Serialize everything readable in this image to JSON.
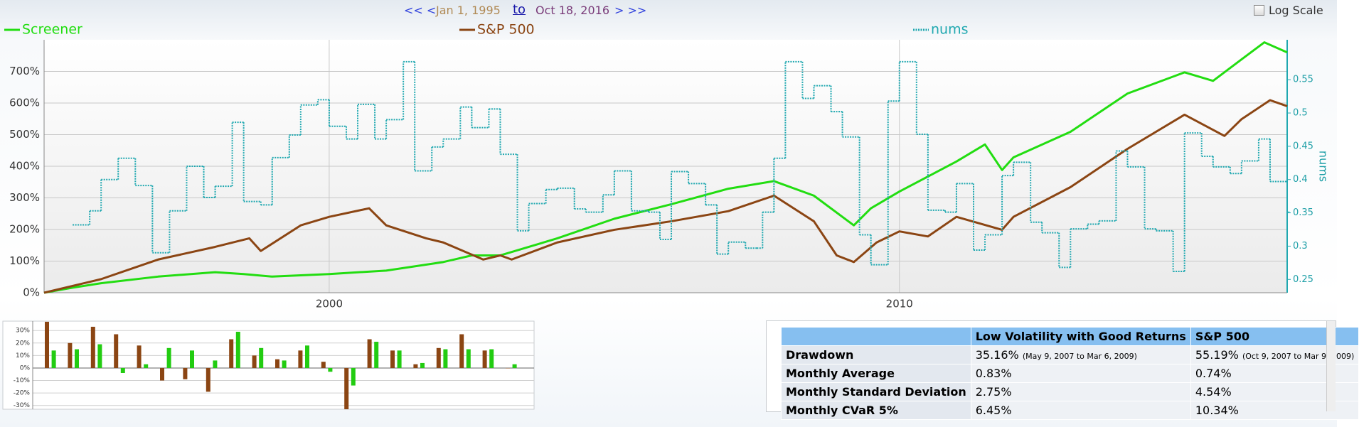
{
  "header": {
    "prev": "<< <",
    "start": "Jan 1, 1995",
    "to": "to",
    "end": "Oct 18, 2016",
    "next": "> >>",
    "log_scale_label": "Log Scale"
  },
  "chart_data": [
    {
      "type": "line",
      "log_scale": false,
      "grid": true,
      "legend": "top",
      "xlim": [
        1995,
        2016.8
      ],
      "xticks": [
        2000,
        2010
      ],
      "ylim": [
        0,
        800
      ],
      "yticks": [
        {
          "value": 0,
          "label": "0%"
        },
        {
          "value": 100,
          "label": "100%"
        },
        {
          "value": 200,
          "label": "200%"
        },
        {
          "value": 300,
          "label": "300%"
        },
        {
          "value": 400,
          "label": "400%"
        },
        {
          "value": 500,
          "label": "500%"
        },
        {
          "value": 600,
          "label": "600%"
        },
        {
          "value": 700,
          "label": "700%"
        }
      ],
      "y2lim": [
        0.23,
        0.61
      ],
      "y2ticks": [
        0.25,
        0.3,
        0.35,
        0.4,
        0.45,
        0.5,
        0.55
      ],
      "y2label": "nums",
      "series": [
        {
          "name": "Screener",
          "color": "#22dd11",
          "x": [
            1995,
            1995.5,
            1996,
            1997,
            1998,
            1998.5,
            1999,
            2000,
            2001,
            2002,
            2002.5,
            2003,
            2004,
            2005,
            2006,
            2007,
            2007.8,
            2008.5,
            2009.2,
            2009.5,
            2010,
            2011,
            2011.5,
            2011.8,
            2012,
            2013,
            2014,
            2015,
            2015.5,
            2016,
            2016.4,
            2016.8
          ],
          "values": [
            0,
            16,
            30,
            51,
            65,
            59,
            51,
            59,
            70,
            97,
            118,
            118,
            172,
            234,
            280,
            329,
            353,
            307,
            213,
            267,
            320,
            415,
            469,
            388,
            428,
            509,
            630,
            697,
            670,
            738,
            792,
            760
          ]
        },
        {
          "name": "S&P 500",
          "color": "#8b4513",
          "x": [
            1995,
            1996,
            1997,
            1998,
            1998.6,
            1998.8,
            1999.5,
            2000,
            2000.7,
            2001,
            2001.7,
            2002,
            2002.7,
            2003,
            2003.2,
            2004,
            2005,
            2006,
            2007,
            2007.8,
            2008.5,
            2008.9,
            2009.2,
            2009.6,
            2010,
            2010.5,
            2011,
            2011.8,
            2012,
            2013,
            2014,
            2015,
            2015.7,
            2016,
            2016.5,
            2016.8
          ],
          "values": [
            0,
            43,
            105,
            145,
            172,
            132,
            213,
            240,
            267,
            213,
            172,
            159,
            105,
            118,
            105,
            159,
            199,
            226,
            258,
            307,
            226,
            118,
            97,
            159,
            194,
            178,
            240,
            199,
            240,
            334,
            455,
            563,
            496,
            549,
            609,
            590
          ]
        },
        {
          "name": "nums",
          "color": "#20a8b0",
          "axis": "y2",
          "step": true,
          "x": [
            1995.5,
            1995.8,
            1996,
            1996.3,
            1996.6,
            1996.9,
            1997.2,
            1997.5,
            1997.8,
            1998,
            1998.3,
            1998.5,
            1998.8,
            1999,
            1999.3,
            1999.5,
            1999.8,
            2000,
            2000.3,
            2000.5,
            2000.8,
            2001,
            2001.3,
            2001.5,
            2001.8,
            2002,
            2002.3,
            2002.5,
            2002.8,
            2003,
            2003.3,
            2003.5,
            2003.8,
            2004,
            2004.3,
            2004.5,
            2004.8,
            2005,
            2005.3,
            2005.6,
            2005.8,
            2006,
            2006.3,
            2006.6,
            2006.8,
            2007,
            2007.3,
            2007.5,
            2007.6,
            2007.8,
            2008,
            2008.3,
            2008.5,
            2008.8,
            2009,
            2009.3,
            2009.5,
            2009.8,
            2010,
            2010.3,
            2010.5,
            2010.8,
            2011,
            2011.3,
            2011.5,
            2011.8,
            2012,
            2012.3,
            2012.5,
            2012.8,
            2013,
            2013.3,
            2013.5,
            2013.8,
            2014,
            2014.3,
            2014.5,
            2014.8,
            2015,
            2015.3,
            2015.5,
            2015.8,
            2016,
            2016.3,
            2016.5,
            2016.8
          ],
          "values": [
            0.332,
            0.353,
            0.4,
            0.432,
            0.391,
            0.29,
            0.353,
            0.42,
            0.373,
            0.39,
            0.486,
            0.367,
            0.362,
            0.433,
            0.467,
            0.512,
            0.52,
            0.48,
            0.461,
            0.513,
            0.461,
            0.49,
            0.577,
            0.413,
            0.449,
            0.461,
            0.509,
            0.478,
            0.506,
            0.438,
            0.323,
            0.364,
            0.385,
            0.387,
            0.356,
            0.351,
            0.377,
            0.413,
            0.353,
            0.351,
            0.31,
            0.412,
            0.394,
            0.362,
            0.288,
            0.306,
            0.297,
            0.297,
            0.351,
            0.432,
            0.577,
            0.522,
            0.541,
            0.502,
            0.464,
            0.317,
            0.272,
            0.518,
            0.577,
            0.468,
            0.354,
            0.351,
            0.394,
            0.294,
            0.317,
            0.406,
            0.426,
            0.336,
            0.32,
            0.268,
            0.326,
            0.333,
            0.338,
            0.443,
            0.419,
            0.326,
            0.323,
            0.262,
            0.47,
            0.435,
            0.419,
            0.409,
            0.428,
            0.461,
            0.397,
            0.351
          ]
        }
      ]
    },
    {
      "type": "bar",
      "grid": true,
      "categories": [
        null,
        null,
        null,
        null,
        null,
        null,
        null,
        null,
        null,
        null,
        null,
        null,
        null,
        null,
        null,
        null,
        null,
        null,
        null,
        null,
        null
      ],
      "ylim": [
        -33,
        37.5
      ],
      "yticks": [
        {
          "value": -30,
          "label": "-30%"
        },
        {
          "value": -20,
          "label": "-20%"
        },
        {
          "value": -10,
          "label": "-10%"
        },
        {
          "value": 0,
          "label": "0%"
        },
        {
          "value": 10,
          "label": "10%"
        },
        {
          "value": 20,
          "label": "20%"
        },
        {
          "value": 30,
          "label": "30%"
        }
      ],
      "series": [
        {
          "color": "#8b4513",
          "values": [
            37,
            20,
            33,
            27,
            18,
            -10,
            -9,
            -19,
            23,
            10,
            7,
            14,
            5,
            -33,
            23,
            14,
            3,
            16,
            27,
            14,
            0
          ]
        },
        {
          "color": "#22cc11",
          "values": [
            14,
            15,
            19,
            -4,
            3,
            16,
            14,
            6,
            29,
            16,
            6,
            18,
            -3,
            -14,
            21,
            14,
            4,
            15,
            15,
            15,
            3
          ]
        }
      ]
    }
  ],
  "table": {
    "columns": [
      "Low Volatility with Good Returns",
      "S&P 500"
    ],
    "rows": [
      {
        "label": "Drawdown",
        "cells": [
          "35.16%",
          "55.19%"
        ],
        "notes": [
          "(May 9, 2007 to Mar 6, 2009)",
          "(Oct 9, 2007 to Mar 9, 2009)"
        ]
      },
      {
        "label": "Monthly Average",
        "cells": [
          "0.83%",
          "0.74%"
        ]
      },
      {
        "label": "Monthly Standard Deviation",
        "cells": [
          "2.75%",
          "4.54%"
        ]
      },
      {
        "label": "Monthly CVaR 5%",
        "cells": [
          "6.45%",
          "10.34%"
        ]
      }
    ]
  }
}
